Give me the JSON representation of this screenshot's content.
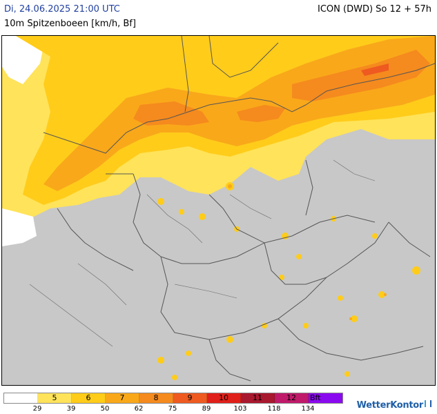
{
  "header": {
    "valid_time": "Di, 24.06.2025 21:00 UTC",
    "parameter": "10m Spitzenboeen [km/h, Bf]",
    "model_run": "ICON (DWD) So 12 + 57h"
  },
  "legend": {
    "boxes": [
      {
        "label": "",
        "color": "#ffffff"
      },
      {
        "label": "5",
        "color": "#ffe35a"
      },
      {
        "label": "6",
        "color": "#ffcc1a"
      },
      {
        "label": "7",
        "color": "#f9a81a"
      },
      {
        "label": "8",
        "color": "#f58a1e"
      },
      {
        "label": "9",
        "color": "#ee5a20"
      },
      {
        "label": "10",
        "color": "#e0201a"
      },
      {
        "label": "11",
        "color": "#a8182e"
      },
      {
        "label": "12",
        "color": "#c01a6a"
      },
      {
        "label": "Bft",
        "color": "#8a0af0"
      }
    ],
    "ticks": [
      "29",
      "39",
      "50",
      "62",
      "75",
      "89",
      "103",
      "118",
      "134"
    ]
  },
  "brand": "WetterKontor"
}
